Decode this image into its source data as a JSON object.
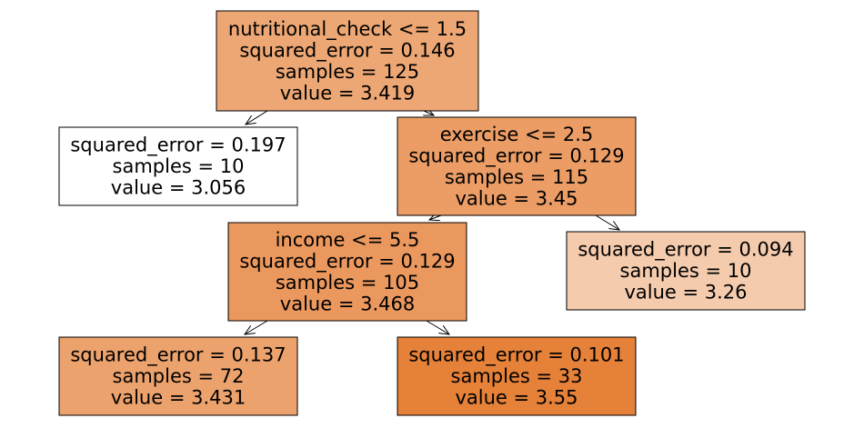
{
  "nodes": [
    {
      "id": "root",
      "lines": [
        "nutritional_check <= 1.5",
        "squared_error = 0.146",
        "samples = 125",
        "value = 3.419"
      ],
      "fill": "#eda774"
    },
    {
      "id": "left-leaf",
      "lines": [
        "squared_error = 0.197",
        "samples = 10",
        "value = 3.056"
      ],
      "fill": "#ffffff"
    },
    {
      "id": "exercise-split",
      "lines": [
        "exercise <= 2.5",
        "squared_error = 0.129",
        "samples = 115",
        "value = 3.45"
      ],
      "fill": "#eb9d65"
    },
    {
      "id": "income-split",
      "lines": [
        "income <= 5.5",
        "squared_error = 0.129",
        "samples = 105",
        "value = 3.468"
      ],
      "fill": "#ea985e"
    },
    {
      "id": "right-leaf",
      "lines": [
        "squared_error = 0.094",
        "samples = 10",
        "value = 3.26"
      ],
      "fill": "#f5cbad"
    },
    {
      "id": "income-left-leaf",
      "lines": [
        "squared_error = 0.137",
        "samples = 72",
        "value = 3.431"
      ],
      "fill": "#eca26c"
    },
    {
      "id": "income-right-leaf",
      "lines": [
        "squared_error = 0.101",
        "samples = 33",
        "value = 3.55"
      ],
      "fill": "#e58139"
    }
  ],
  "edges": [
    {
      "from": "root",
      "to": "left-leaf"
    },
    {
      "from": "root",
      "to": "exercise-split"
    },
    {
      "from": "exercise-split",
      "to": "income-split"
    },
    {
      "from": "exercise-split",
      "to": "right-leaf"
    },
    {
      "from": "income-split",
      "to": "income-left-leaf"
    },
    {
      "from": "income-split",
      "to": "income-right-leaf"
    }
  ]
}
